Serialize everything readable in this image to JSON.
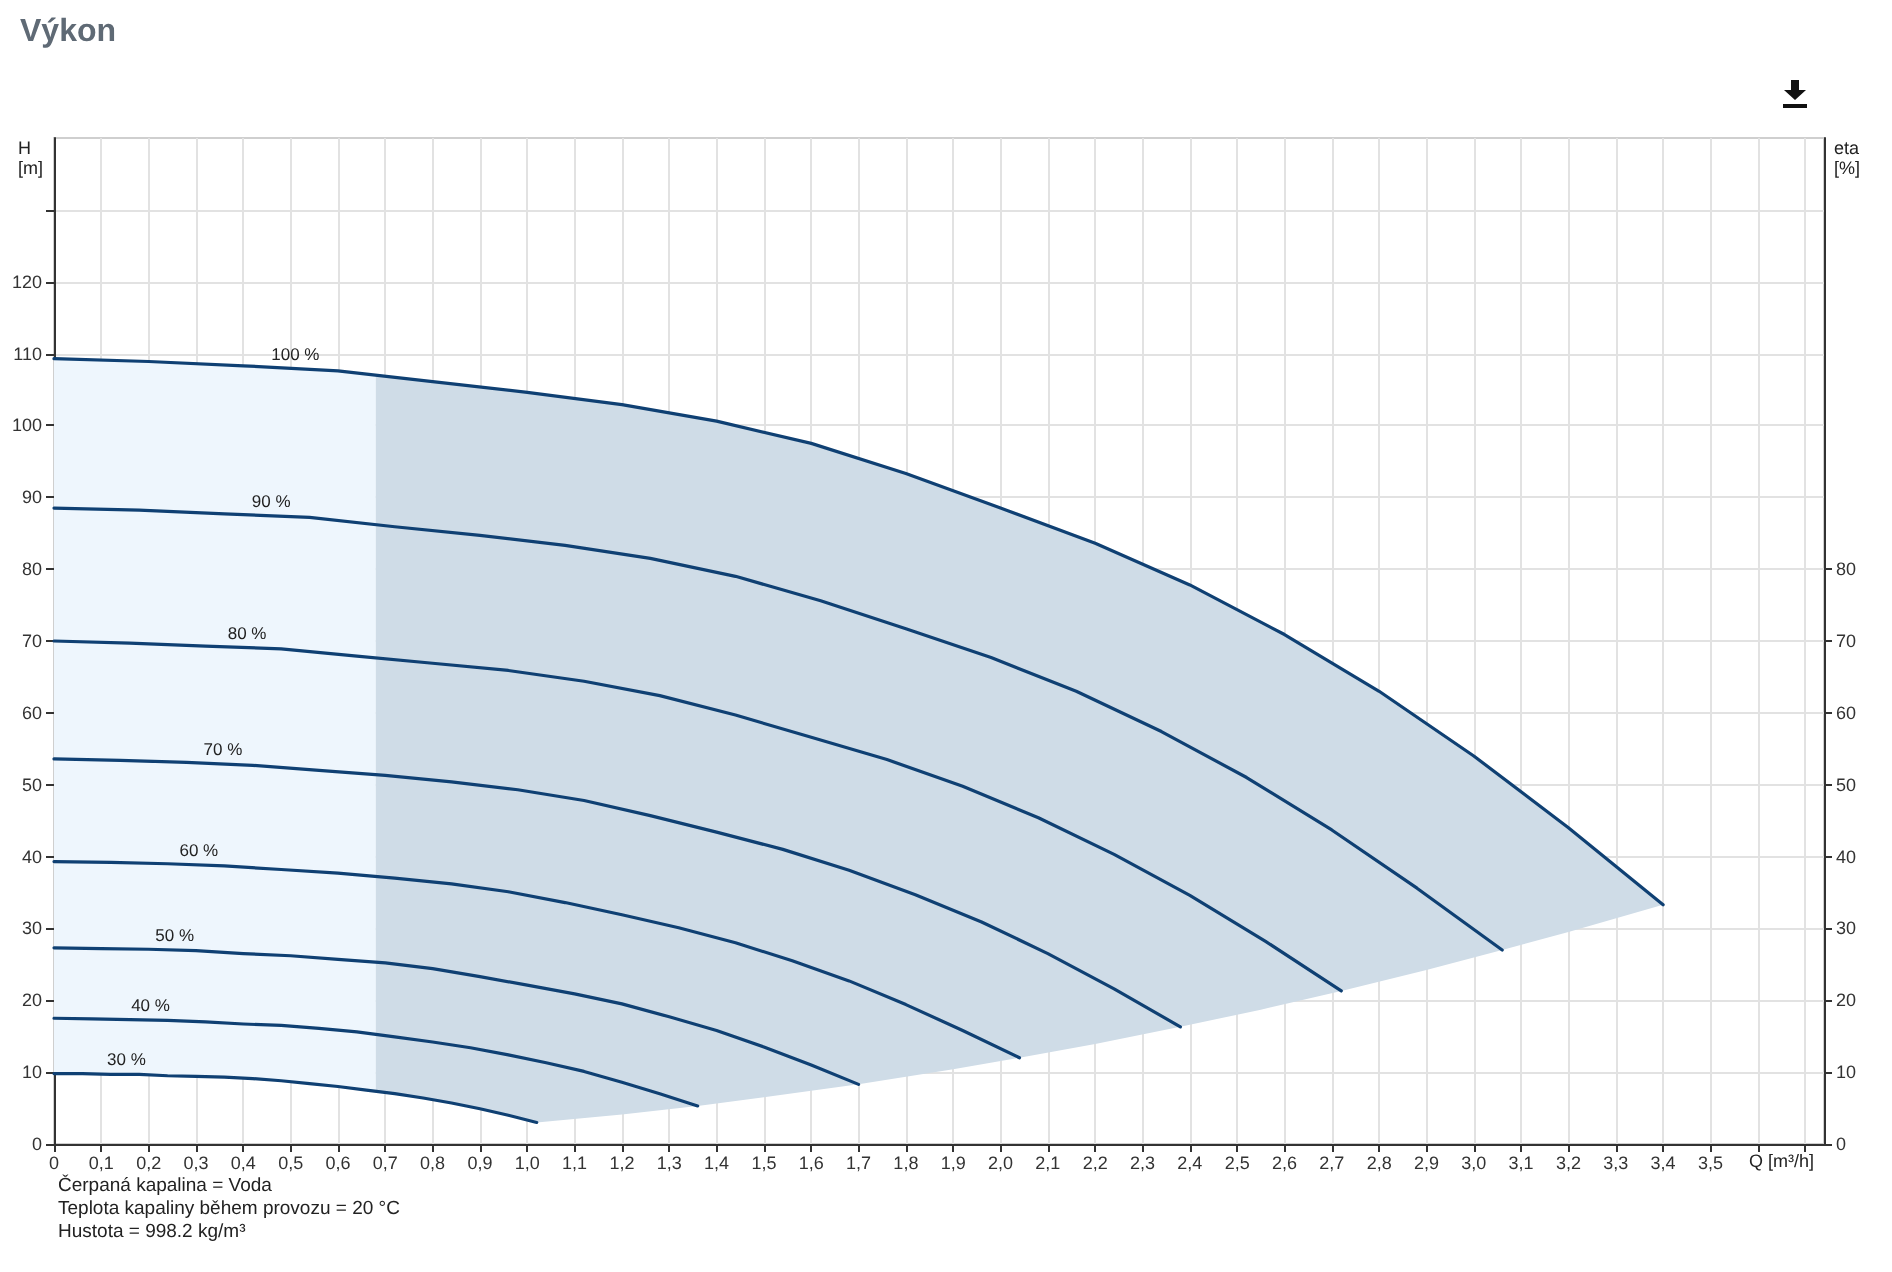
{
  "chart_data": {
    "type": "line",
    "title": "Výkon",
    "xlabel": "Q [m³/h]",
    "ylabel": "H\n[m]",
    "y2label": "eta\n[%]",
    "annotations": [
      "Čerpaná kapalina = Voda",
      "Teplota kapaliny během provozu = 20 °C",
      "Hustota = 998.2 kg/m³"
    ],
    "xlim": [
      0,
      3.74
    ],
    "xticks": [
      0,
      {
        "value": 0.1,
        "label": "0,1"
      },
      {
        "value": 0.2,
        "label": "0,2"
      },
      {
        "value": 0.3,
        "label": "0,3"
      },
      {
        "value": 0.4,
        "label": "0,4"
      },
      {
        "value": 0.5,
        "label": "0,5"
      },
      {
        "value": 0.6,
        "label": "0,6"
      },
      {
        "value": 0.7,
        "label": "0,7"
      },
      {
        "value": 0.8,
        "label": "0,8"
      },
      {
        "value": 0.9,
        "label": "0,9"
      },
      {
        "value": 1,
        "label": "1,0"
      },
      {
        "value": 1.1,
        "label": "1,1"
      },
      {
        "value": 1.2,
        "label": "1,2"
      },
      {
        "value": 1.3,
        "label": "1,3"
      },
      {
        "value": 1.4,
        "label": "1,4"
      },
      {
        "value": 1.5,
        "label": "1,5"
      },
      {
        "value": 1.6,
        "label": "1,6"
      },
      {
        "value": 1.7,
        "label": "1,7"
      },
      {
        "value": 1.8,
        "label": "1,8"
      },
      {
        "value": 1.9,
        "label": "1,9"
      },
      {
        "value": 2,
        "label": "2,0"
      },
      {
        "value": 2.1,
        "label": "2,1"
      },
      {
        "value": 2.2,
        "label": "2,2"
      },
      {
        "value": 2.3,
        "label": "2,3"
      },
      {
        "value": 2.4,
        "label": "2,4"
      },
      {
        "value": 2.5,
        "label": "2,5"
      },
      {
        "value": 2.6,
        "label": "2,6"
      },
      {
        "value": 2.7,
        "label": "2,7"
      },
      {
        "value": 2.8,
        "label": "2,8"
      },
      {
        "value": 2.9,
        "label": "2,9"
      },
      {
        "value": 3,
        "label": "3,0"
      },
      {
        "value": 3.1,
        "label": "3,1"
      },
      {
        "value": 3.2,
        "label": "3,2"
      },
      {
        "value": 3.3,
        "label": "3,3"
      },
      {
        "value": 3.4,
        "label": "3,4"
      },
      {
        "value": 3.5,
        "label": "3,5"
      },
      {
        "value": 3.6,
        "label": null
      },
      {
        "value": 3.7,
        "label": null
      }
    ],
    "ylim": [
      0,
      140
    ],
    "yticks": [
      0,
      10,
      20,
      30,
      40,
      50,
      60,
      70,
      80,
      90,
      100,
      110,
      120,
      {
        "value": 130,
        "label": null
      }
    ],
    "y2lim": [
      0,
      140
    ],
    "y2ticks": [
      0,
      10,
      20,
      30,
      40,
      50,
      60,
      70,
      80
    ],
    "grid": true,
    "marker": "none",
    "line_style": "solid",
    "series": [
      {
        "type": "area",
        "color": "#eef6fd",
        "x": [
          0,
          0.1,
          0.2,
          0.3,
          0.4,
          0.5,
          0.6,
          0.68
        ],
        "values": [
          null,
          null,
          null,
          null,
          null,
          null,
          null,
          null
        ],
        "upper": [
          109.3,
          109.1,
          108.9,
          108.6,
          108.3,
          108.0,
          107.6,
          107.1
        ],
        "lower": [
          9.8,
          9.8,
          9.7,
          9.4,
          9.2,
          8.7,
          8.0,
          7.3
        ]
      },
      {
        "type": "area",
        "color": "#cfdce7",
        "x": [
          0.68,
          0.8,
          0.9,
          1.02,
          1.2,
          1.36,
          1.5,
          1.7,
          1.9,
          2.04,
          2.2,
          2.38,
          2.55,
          2.72,
          2.9,
          3.06,
          3.2,
          3.4
        ],
        "values": [
          null,
          null,
          null,
          null,
          null,
          null,
          null,
          null,
          null,
          null,
          null,
          null,
          null,
          null,
          null,
          null,
          null,
          null
        ],
        "upper": [
          107.1,
          106.1,
          105.4,
          104.4,
          102.9,
          101.1,
          99.1,
          95.4,
          91.0,
          87.5,
          83.6,
          78.4,
          72.6,
          66.2,
          58.5,
          51.0,
          44.0,
          33.3
        ],
        "lower": [
          7.3,
          6.2,
          4.9,
          3.0,
          4.1,
          5.3,
          6.5,
          8.3,
          10.4,
          12.0,
          13.9,
          16.3,
          18.7,
          21.3,
          24.2,
          27.0,
          29.5,
          33.3
        ]
      },
      {
        "name": "100 %",
        "color": "#0f4073",
        "x": [
          0,
          0.2,
          0.4,
          0.6,
          0.8,
          1.0,
          1.2,
          1.4,
          1.6,
          1.8,
          2.0,
          2.2,
          2.4,
          2.6,
          2.8,
          3.0,
          3.2,
          3.4
        ],
        "values": [
          109.3,
          108.9,
          108.3,
          107.6,
          106.1,
          104.6,
          102.9,
          100.6,
          97.5,
          93.3,
          88.5,
          83.6,
          77.8,
          70.9,
          63.0,
          54.0,
          44.0,
          33.3
        ]
      },
      {
        "name": "90 %",
        "color": "#0f4073",
        "x": [
          0,
          0.18,
          0.36,
          0.54,
          0.72,
          0.9,
          1.08,
          1.26,
          1.44,
          1.62,
          1.8,
          1.98,
          2.16,
          2.34,
          2.52,
          2.7,
          2.88,
          3.06
        ],
        "values": [
          88.5,
          88.2,
          87.7,
          87.2,
          85.9,
          84.7,
          83.3,
          81.5,
          79.0,
          75.6,
          71.7,
          67.7,
          63.0,
          57.4,
          51.0,
          43.7,
          35.6,
          27.0
        ]
      },
      {
        "name": "80 %",
        "color": "#0f4073",
        "x": [
          0,
          0.16,
          0.32,
          0.48,
          0.64,
          0.8,
          0.96,
          1.12,
          1.28,
          1.44,
          1.6,
          1.76,
          1.92,
          2.08,
          2.24,
          2.4,
          2.56,
          2.72
        ],
        "values": [
          70.0,
          69.7,
          69.3,
          68.9,
          67.9,
          66.9,
          65.9,
          64.4,
          62.4,
          59.7,
          56.6,
          53.5,
          49.8,
          45.4,
          40.3,
          34.6,
          28.2,
          21.3
        ]
      },
      {
        "name": "70 %",
        "color": "#0f4073",
        "x": [
          0,
          0.14,
          0.28,
          0.42,
          0.56,
          0.7,
          0.84,
          0.98,
          1.12,
          1.26,
          1.4,
          1.54,
          1.68,
          1.82,
          1.96,
          2.1,
          2.24,
          2.38
        ],
        "values": [
          53.6,
          53.4,
          53.1,
          52.7,
          52.0,
          51.3,
          50.4,
          49.3,
          47.8,
          45.7,
          43.4,
          41.0,
          38.1,
          34.7,
          30.9,
          26.5,
          21.6,
          16.3
        ]
      },
      {
        "name": "60 %",
        "color": "#0f4073",
        "x": [
          0,
          0.12,
          0.24,
          0.36,
          0.48,
          0.6,
          0.72,
          0.84,
          0.96,
          1.08,
          1.2,
          1.32,
          1.44,
          1.56,
          1.68,
          1.8,
          1.92,
          2.04
        ],
        "values": [
          39.3,
          39.2,
          39.0,
          38.7,
          38.2,
          37.7,
          37.0,
          36.2,
          35.1,
          33.6,
          31.9,
          30.1,
          28.0,
          25.5,
          22.7,
          19.4,
          15.8,
          12.0
        ]
      },
      {
        "name": "50 %",
        "color": "#0f4073",
        "x": [
          0,
          0.1,
          0.2,
          0.3,
          0.4,
          0.5,
          0.6,
          0.7,
          0.8,
          0.9,
          1.0,
          1.1,
          1.2,
          1.3,
          1.4,
          1.5,
          1.6,
          1.7
        ],
        "values": [
          27.3,
          27.2,
          27.1,
          26.9,
          26.5,
          26.2,
          25.7,
          25.2,
          24.4,
          23.3,
          22.1,
          20.9,
          19.5,
          17.7,
          15.8,
          13.5,
          11.0,
          8.3
        ]
      },
      {
        "name": "40 %",
        "color": "#0f4073",
        "x": [
          0,
          0.08,
          0.16,
          0.24,
          0.32,
          0.4,
          0.48,
          0.56,
          0.64,
          0.72,
          0.8,
          0.88,
          0.96,
          1.04,
          1.12,
          1.2,
          1.28,
          1.36
        ],
        "values": [
          17.5,
          17.4,
          17.3,
          17.2,
          17.0,
          16.7,
          16.5,
          16.1,
          15.6,
          14.9,
          14.2,
          13.4,
          12.4,
          11.3,
          10.1,
          8.6,
          7.0,
          5.3
        ]
      },
      {
        "name": "30 %",
        "color": "#0f4073",
        "x": [
          0,
          0.06,
          0.12,
          0.18,
          0.24,
          0.3,
          0.36,
          0.42,
          0.48,
          0.54,
          0.6,
          0.66,
          0.72,
          0.78,
          0.84,
          0.9,
          0.96,
          1.02
        ],
        "values": [
          9.8,
          9.8,
          9.7,
          9.7,
          9.5,
          9.4,
          9.3,
          9.1,
          8.8,
          8.4,
          8.0,
          7.5,
          7.0,
          6.4,
          5.7,
          4.9,
          4.0,
          3.0
        ]
      }
    ]
  }
}
